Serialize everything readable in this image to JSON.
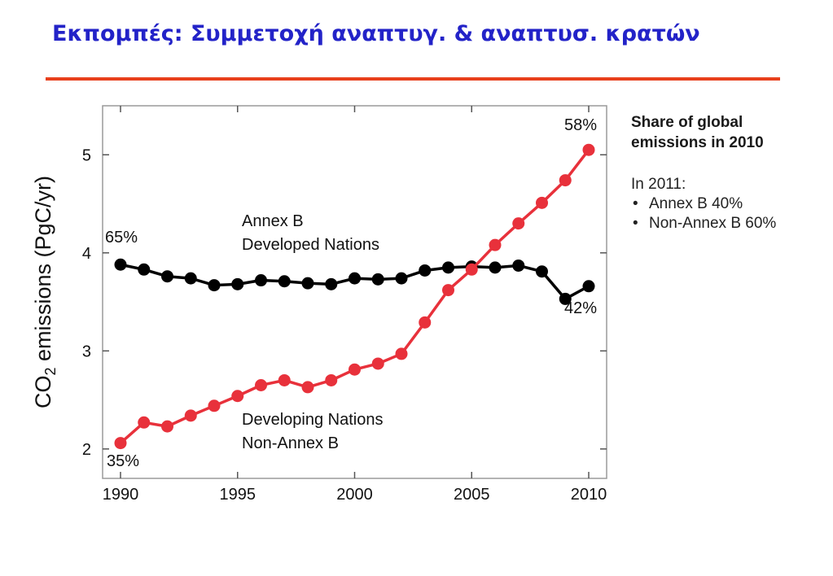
{
  "header": {
    "title": "Εκπομπές: Συμμετοχή αναπτυγ. & αναπτυσ. κρατών",
    "accent_color": "#e8401c",
    "title_color": "#2323c8"
  },
  "side_panel": {
    "heading_line1": "Share of global",
    "heading_line2": "emissions in 2010",
    "in_year": "In 2011:",
    "items": [
      "Annex B 40%",
      "Non-Annex B 60%"
    ]
  },
  "chart_data": {
    "type": "line",
    "ylabel_main": "CO",
    "ylabel_sub": "2",
    "ylabel_rest": " emissions (PgC/yr)",
    "xlim": [
      1990,
      2010
    ],
    "ylim": [
      1.7,
      5.5
    ],
    "xticks": [
      1990,
      1995,
      2000,
      2005,
      2010
    ],
    "yticks": [
      2,
      3,
      4,
      5
    ],
    "x": [
      1990,
      1991,
      1992,
      1993,
      1994,
      1995,
      1996,
      1997,
      1998,
      1999,
      2000,
      2001,
      2002,
      2003,
      2004,
      2005,
      2006,
      2007,
      2008,
      2009,
      2010
    ],
    "series": [
      {
        "label_line1": "Annex B",
        "label_line2": "Developed Nations",
        "color": "#000000",
        "values": [
          3.88,
          3.83,
          3.76,
          3.74,
          3.67,
          3.68,
          3.72,
          3.71,
          3.69,
          3.68,
          3.74,
          3.73,
          3.74,
          3.82,
          3.85,
          3.86,
          3.85,
          3.87,
          3.81,
          3.53,
          3.66
        ],
        "start_label": "65%",
        "end_label": "42%"
      },
      {
        "label_line1": "Developing Nations",
        "label_line2": "Non-Annex B",
        "color": "#e8313b",
        "values": [
          2.06,
          2.27,
          2.23,
          2.34,
          2.44,
          2.54,
          2.65,
          2.7,
          2.63,
          2.7,
          2.81,
          2.87,
          2.97,
          3.29,
          3.62,
          3.83,
          4.08,
          4.3,
          4.51,
          4.74,
          5.05
        ],
        "start_label": "35%",
        "end_label": "58%"
      }
    ]
  }
}
